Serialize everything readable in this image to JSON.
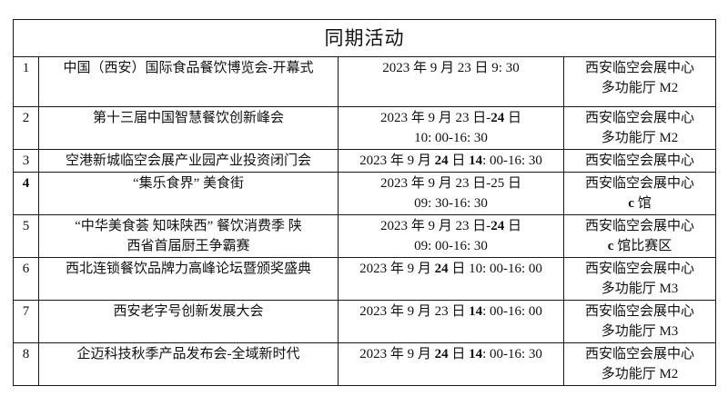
{
  "colors": {
    "background": "#ffffff",
    "border": "#1a1a1a",
    "text": "#111111"
  },
  "table": {
    "title": "同期活动",
    "rows": [
      {
        "num": "1",
        "name": [
          "中国（西安）国际食品餐饮博览会-开幕式"
        ],
        "datetime": [
          "2023 年 9 月 23 日 9: 30"
        ],
        "venue": [
          "西安临空会展中心",
          "多功能厅 M2"
        ]
      },
      {
        "num": "2",
        "name": [
          "第十三届中国智慧餐饮创新峰会"
        ],
        "datetime": [
          "2023 年 9 月 23 日-**24** 日",
          "10: 00-16: 30"
        ],
        "venue": [
          "西安临空会展中心",
          "多功能厅 M2"
        ]
      },
      {
        "num": "3",
        "name": [
          "空港新城临空会展产业园产业投资闭门会"
        ],
        "datetime": [
          "2023 年 9 月 **24** 日 **14**: 00-16: 30"
        ],
        "venue": [
          "西安临空会展中心"
        ]
      },
      {
        "num": "**4**",
        "name": [
          "“集乐食界” 美食街"
        ],
        "datetime": [
          "2023 年 9 月 23 日-25 日",
          "09: 30-16: 30"
        ],
        "venue": [
          "西安临空会展中心",
          "**c** 馆"
        ]
      },
      {
        "num": "5",
        "name": [
          "“中华美食荟 知味陕西” 餐饮消费季 陕",
          "西省首届厨王争霸赛"
        ],
        "datetime": [
          "2023 年 9 月 23 日-**24** 日",
          "09: 00-16: 30"
        ],
        "venue": [
          "西安临空会展中心",
          "**c** 馆比赛区"
        ]
      },
      {
        "num": "6",
        "name": [
          "西北连锁餐饮品牌力高峰论坛暨颁奖盛典"
        ],
        "datetime": [
          "2023 年 9 月 **24** 日 10: 00-16: 00"
        ],
        "venue": [
          "西安临空会展中心",
          "多功能厅 M3"
        ]
      },
      {
        "num": "7",
        "name": [
          "西安老字号创新发展大会"
        ],
        "datetime": [
          "2023 年 9 月 23 日 **14**: 00-16: 00"
        ],
        "venue": [
          "西安临空会展中心",
          "多功能厅 M3"
        ]
      },
      {
        "num": "8",
        "name": [
          "企迈科技秋季产品发布会-全域新时代"
        ],
        "datetime": [
          "2023 年 9 月 **24** 日 **14**: 00-16: 30"
        ],
        "venue": [
          "西安临空会展中心",
          "多功能厅 M2"
        ]
      }
    ]
  }
}
